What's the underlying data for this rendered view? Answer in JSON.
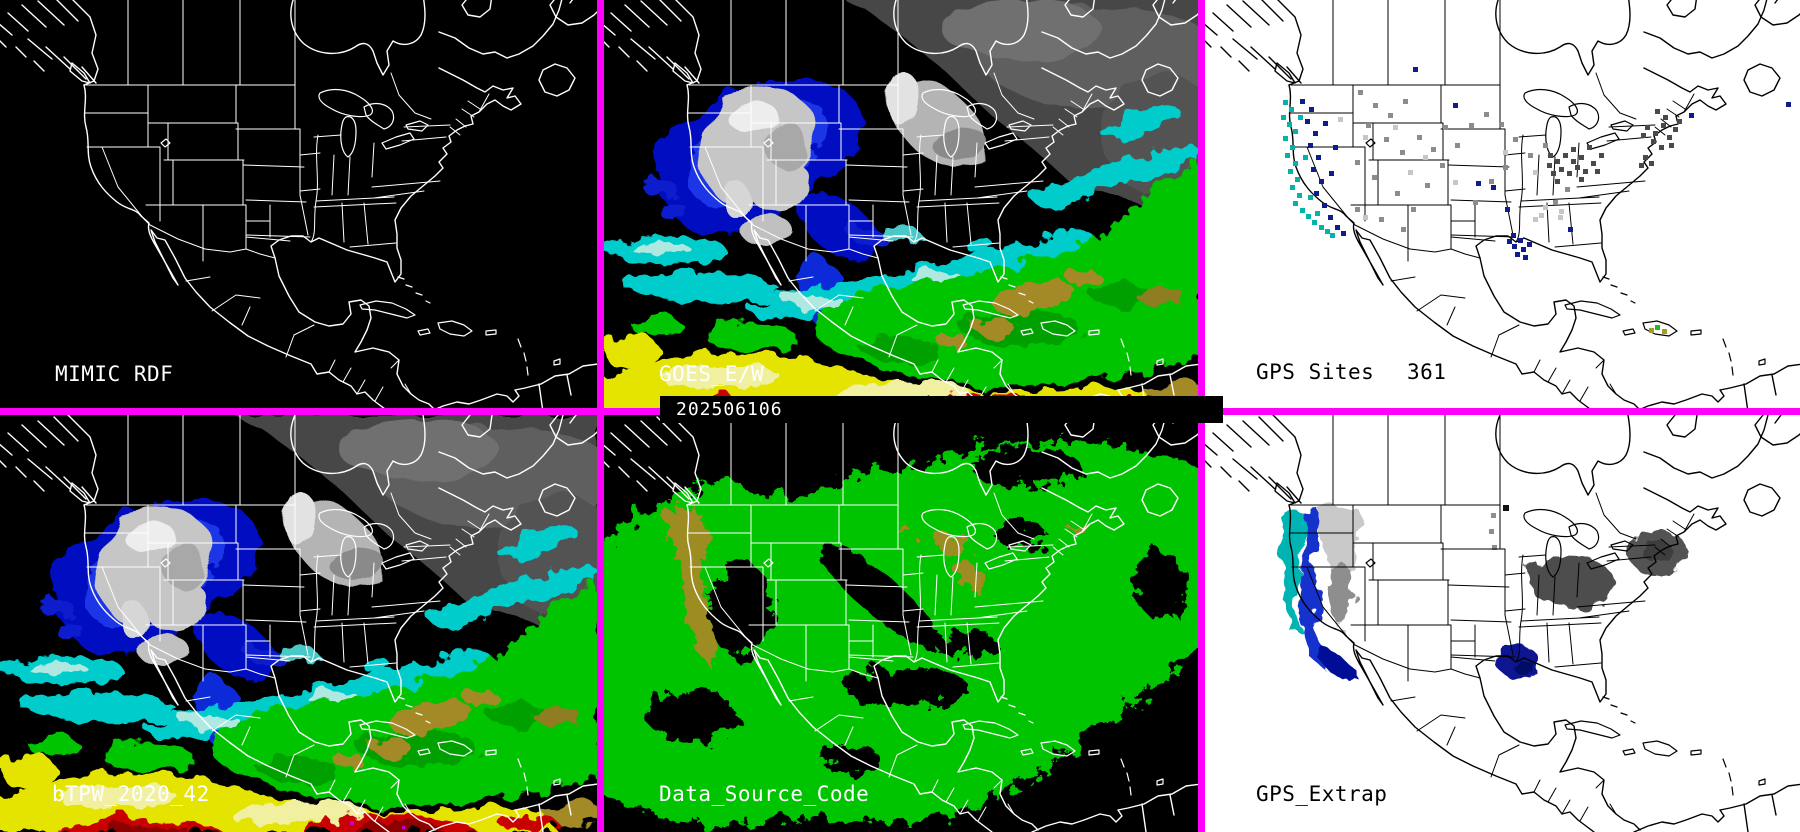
{
  "timestamp": "202506106",
  "panels": {
    "mimic_rdf": {
      "label": "MIMIC RDF"
    },
    "goes": {
      "label": "GOES_E/W"
    },
    "gps_sites": {
      "label": "GPS Sites",
      "count": "361"
    },
    "btpw": {
      "label": "bTPW_2020_42"
    },
    "data_source_code": {
      "label": "Data_Source_Code"
    },
    "gps_extrap": {
      "label": "GPS_Extrap"
    }
  },
  "colors": {
    "divider": "#ff00ff",
    "panel_dark_bg": "#000000",
    "panel_light_bg": "#ffffff",
    "outline_on_dark": "#ffffff",
    "outline_on_light": "#000000",
    "timestamp_band_bg": "#000000",
    "timestamp_text": "#ffffff",
    "tpw_cloud_gray": "#b4b4b4",
    "tpw_low_blue": "#000cc0",
    "tpw_cyan": "#00cccc",
    "tpw_green": "#00c400",
    "tpw_olive": "#a38a28",
    "tpw_yellow": "#e4e400",
    "tpw_red": "#c80000",
    "dsc_green": "#00c400",
    "dsc_olive": "#9c8c20"
  },
  "gps_site_markers": {
    "dot_colors": {
      "c": "#00b4aa",
      "n": "#101c8c",
      "g": "#8c8c8c",
      "l": "#c6c6c6",
      "d": "#4a4a4a",
      "gr": "#22bb22",
      "o": "#a0a020"
    },
    "sites": [
      [
        80,
        105,
        "c"
      ],
      [
        86,
        112,
        "c"
      ],
      [
        78,
        120,
        "c"
      ],
      [
        84,
        127,
        "c"
      ],
      [
        90,
        134,
        "c"
      ],
      [
        80,
        141,
        "c"
      ],
      [
        87,
        150,
        "c"
      ],
      [
        82,
        158,
        "c"
      ],
      [
        90,
        166,
        "c"
      ],
      [
        85,
        174,
        "c"
      ],
      [
        92,
        182,
        "c"
      ],
      [
        87,
        190,
        "c"
      ],
      [
        94,
        198,
        "c"
      ],
      [
        90,
        206,
        "c"
      ],
      [
        97,
        213,
        "c"
      ],
      [
        103,
        219,
        "c"
      ],
      [
        109,
        225,
        "c"
      ],
      [
        116,
        230,
        "c"
      ],
      [
        122,
        234,
        "c"
      ],
      [
        95,
        120,
        "c"
      ],
      [
        100,
        160,
        "c"
      ],
      [
        105,
        200,
        "c"
      ],
      [
        112,
        216,
        "c"
      ],
      [
        127,
        238,
        "c"
      ],
      [
        97,
        104,
        "n"
      ],
      [
        106,
        112,
        "n"
      ],
      [
        102,
        124,
        "n"
      ],
      [
        110,
        136,
        "n"
      ],
      [
        105,
        148,
        "n"
      ],
      [
        113,
        160,
        "n"
      ],
      [
        108,
        172,
        "n"
      ],
      [
        116,
        184,
        "n"
      ],
      [
        111,
        196,
        "n"
      ],
      [
        119,
        208,
        "n"
      ],
      [
        125,
        220,
        "n"
      ],
      [
        132,
        230,
        "n"
      ],
      [
        138,
        236,
        "n"
      ],
      [
        120,
        126,
        "n"
      ],
      [
        130,
        150,
        "n"
      ],
      [
        126,
        176,
        "n"
      ],
      [
        210,
        72,
        "n"
      ],
      [
        250,
        108,
        "n"
      ],
      [
        273,
        186,
        "n"
      ],
      [
        288,
        190,
        "n"
      ],
      [
        302,
        212,
        "n"
      ],
      [
        308,
        238,
        "n"
      ],
      [
        315,
        243,
        "n"
      ],
      [
        309,
        249,
        "n"
      ],
      [
        318,
        252,
        "n"
      ],
      [
        312,
        257,
        "n"
      ],
      [
        320,
        260,
        "n"
      ],
      [
        304,
        244,
        "n"
      ],
      [
        324,
        247,
        "n"
      ],
      [
        486,
        118,
        "n"
      ],
      [
        583,
        107,
        "n"
      ],
      [
        365,
        232,
        "n"
      ],
      [
        155,
        95,
        "g"
      ],
      [
        170,
        108,
        "g"
      ],
      [
        185,
        118,
        "g"
      ],
      [
        200,
        104,
        "g"
      ],
      [
        163,
        128,
        "g"
      ],
      [
        181,
        142,
        "g"
      ],
      [
        197,
        155,
        "g"
      ],
      [
        214,
        140,
        "g"
      ],
      [
        228,
        152,
        "g"
      ],
      [
        152,
        165,
        "g"
      ],
      [
        169,
        180,
        "g"
      ],
      [
        192,
        196,
        "g"
      ],
      [
        208,
        212,
        "g"
      ],
      [
        222,
        188,
        "g"
      ],
      [
        237,
        168,
        "g"
      ],
      [
        252,
        148,
        "g"
      ],
      [
        266,
        128,
        "g"
      ],
      [
        281,
        117,
        "g"
      ],
      [
        296,
        127,
        "g"
      ],
      [
        310,
        142,
        "g"
      ],
      [
        325,
        158,
        "g"
      ],
      [
        340,
        148,
        "g"
      ],
      [
        300,
        170,
        "g"
      ],
      [
        286,
        184,
        "g"
      ],
      [
        270,
        205,
        "g"
      ],
      [
        350,
        205,
        "g"
      ],
      [
        362,
        192,
        "g"
      ],
      [
        152,
        212,
        "g"
      ],
      [
        176,
        222,
        "g"
      ],
      [
        198,
        232,
        "g"
      ],
      [
        240,
        130,
        "g"
      ],
      [
        160,
        140,
        "l"
      ],
      [
        190,
        130,
        "l"
      ],
      [
        220,
        160,
        "l"
      ],
      [
        250,
        185,
        "l"
      ],
      [
        300,
        155,
        "l"
      ],
      [
        330,
        175,
        "l"
      ],
      [
        355,
        220,
        "l"
      ],
      [
        160,
        220,
        "l"
      ],
      [
        135,
        122,
        "l"
      ],
      [
        205,
        175,
        "l"
      ],
      [
        340,
        210,
        "l"
      ],
      [
        356,
        214,
        "l"
      ],
      [
        330,
        222,
        "l"
      ],
      [
        336,
        218,
        "l"
      ],
      [
        345,
        158,
        "d"
      ],
      [
        352,
        164,
        "d"
      ],
      [
        360,
        158,
        "d"
      ],
      [
        368,
        164,
        "d"
      ],
      [
        356,
        172,
        "d"
      ],
      [
        364,
        176,
        "d"
      ],
      [
        372,
        170,
        "d"
      ],
      [
        348,
        176,
        "d"
      ],
      [
        376,
        160,
        "d"
      ],
      [
        380,
        174,
        "d"
      ],
      [
        368,
        152,
        "d"
      ],
      [
        388,
        166,
        "d"
      ],
      [
        396,
        158,
        "d"
      ],
      [
        384,
        150,
        "d"
      ],
      [
        392,
        174,
        "d"
      ],
      [
        376,
        182,
        "d"
      ],
      [
        352,
        184,
        "d"
      ],
      [
        344,
        168,
        "d"
      ],
      [
        442,
        130,
        "d"
      ],
      [
        450,
        136,
        "d"
      ],
      [
        458,
        128,
        "d"
      ],
      [
        448,
        144,
        "d"
      ],
      [
        456,
        150,
        "d"
      ],
      [
        464,
        140,
        "d"
      ],
      [
        470,
        132,
        "d"
      ],
      [
        466,
        148,
        "d"
      ],
      [
        474,
        124,
        "d"
      ],
      [
        438,
        138,
        "d"
      ],
      [
        460,
        120,
        "d"
      ],
      [
        452,
        114,
        "d"
      ],
      [
        440,
        160,
        "d"
      ],
      [
        446,
        166,
        "d"
      ],
      [
        436,
        168,
        "d"
      ],
      [
        452,
        330,
        "gr"
      ],
      [
        446,
        333,
        "o"
      ],
      [
        459,
        334,
        "o"
      ]
    ]
  }
}
